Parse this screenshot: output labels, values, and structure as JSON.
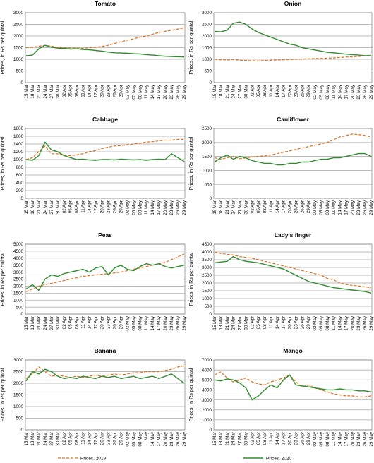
{
  "x_dates": [
    "15 Mar",
    "18 Mar",
    "21 Mar",
    "24 Mar",
    "27 Mar",
    "30 Mar",
    "02 Apr",
    "05 Apr",
    "08 Apr",
    "11 Apr",
    "14 Apr",
    "17 Apr",
    "20 Apr",
    "23 Apr",
    "26 Apr",
    "29 Apr",
    "02 May",
    "05 May",
    "08 May",
    "11 May",
    "14 May",
    "17 May",
    "20 May",
    "23 May",
    "26 May",
    "29 May"
  ],
  "legend": {
    "series_2019": "Prices, 2019",
    "series_2020": "Prices, 2020"
  },
  "colors": {
    "series_2019": "#E07020",
    "series_2020": "#2E8B2E",
    "grid": "#a6a6a6"
  },
  "chart_data": [
    {
      "type": "line",
      "title": "Tomato",
      "ylabel": "Prices, in Rs per quintal",
      "ylim": [
        0,
        3000
      ],
      "yticks": [
        0,
        500,
        1000,
        1500,
        2000,
        2500,
        3000
      ],
      "series": [
        {
          "name": "Prices, 2019",
          "values": [
            1500,
            1520,
            1560,
            1600,
            1560,
            1520,
            1500,
            1490,
            1480,
            1470,
            1500,
            1520,
            1550,
            1600,
            1680,
            1750,
            1820,
            1880,
            1950,
            2000,
            2080,
            2150,
            2200,
            2250,
            2300,
            2350
          ]
        },
        {
          "name": "Prices, 2020",
          "values": [
            1150,
            1180,
            1450,
            1600,
            1520,
            1480,
            1470,
            1440,
            1450,
            1420,
            1410,
            1380,
            1350,
            1310,
            1280,
            1270,
            1260,
            1240,
            1230,
            1200,
            1180,
            1150,
            1130,
            1120,
            1110,
            1100
          ]
        }
      ]
    },
    {
      "type": "line",
      "title": "Onion",
      "ylabel": "Prices, in Rs per quintal",
      "ylim": [
        0,
        3000
      ],
      "yticks": [
        0,
        500,
        1000,
        1500,
        2000,
        2500,
        3000
      ],
      "series": [
        {
          "name": "Prices, 2019",
          "values": [
            1000,
            980,
            970,
            990,
            960,
            950,
            940,
            930,
            950,
            960,
            970,
            980,
            990,
            1000,
            1010,
            1020,
            1030,
            1040,
            1050,
            1060,
            1080,
            1100,
            1110,
            1120,
            1150,
            1180
          ]
        },
        {
          "name": "Prices, 2020",
          "values": [
            2200,
            2180,
            2250,
            2550,
            2600,
            2500,
            2300,
            2150,
            2050,
            1950,
            1850,
            1750,
            1650,
            1600,
            1500,
            1450,
            1400,
            1350,
            1300,
            1280,
            1250,
            1220,
            1200,
            1180,
            1150,
            1150
          ]
        }
      ]
    },
    {
      "type": "line",
      "title": "Cabbage",
      "ylabel": "Prices, in Rs per quintal",
      "ylim": [
        0,
        1800
      ],
      "yticks": [
        0,
        200,
        400,
        600,
        800,
        1000,
        1200,
        1400,
        1600,
        1800
      ],
      "series": [
        {
          "name": "Prices, 2019",
          "values": [
            1000,
            1050,
            1200,
            1350,
            1150,
            1150,
            1100,
            1100,
            1120,
            1150,
            1200,
            1230,
            1280,
            1320,
            1350,
            1360,
            1380,
            1400,
            1420,
            1450,
            1460,
            1480,
            1500,
            1500,
            1520,
            1520
          ]
        },
        {
          "name": "Prices, 2020",
          "values": [
            1000,
            980,
            1100,
            1450,
            1250,
            1200,
            1100,
            1050,
            1000,
            1010,
            990,
            980,
            1000,
            1000,
            990,
            1010,
            1000,
            990,
            1000,
            980,
            1000,
            1010,
            1000,
            1150,
            1050,
            950
          ]
        }
      ]
    },
    {
      "type": "line",
      "title": "Cauliflower",
      "ylabel": "Prices, in Rs per quintal",
      "ylim": [
        0,
        2500
      ],
      "yticks": [
        0,
        500,
        1000,
        1500,
        2000,
        2500
      ],
      "series": [
        {
          "name": "Prices, 2019",
          "values": [
            1450,
            1400,
            1450,
            1500,
            1420,
            1450,
            1480,
            1500,
            1520,
            1550,
            1600,
            1650,
            1700,
            1750,
            1800,
            1850,
            1900,
            1950,
            2000,
            2100,
            2200,
            2250,
            2300,
            2280,
            2250,
            2200
          ]
        },
        {
          "name": "Prices, 2020",
          "values": [
            1300,
            1450,
            1550,
            1400,
            1500,
            1450,
            1350,
            1300,
            1250,
            1250,
            1200,
            1200,
            1250,
            1250,
            1300,
            1300,
            1350,
            1400,
            1400,
            1450,
            1450,
            1500,
            1550,
            1600,
            1600,
            1500
          ]
        }
      ]
    },
    {
      "type": "line",
      "title": "Peas",
      "ylabel": "Prices, in Rs per quintal",
      "ylim": [
        0,
        5000
      ],
      "yticks": [
        0,
        500,
        1000,
        1500,
        2000,
        2500,
        3000,
        3500,
        4000,
        4500,
        5000
      ],
      "series": [
        {
          "name": "Prices, 2019",
          "values": [
            1600,
            1800,
            2000,
            2100,
            2200,
            2300,
            2400,
            2500,
            2600,
            2700,
            2750,
            2800,
            2850,
            2900,
            2950,
            3000,
            3100,
            3200,
            3300,
            3400,
            3500,
            3600,
            3700,
            3900,
            4100,
            4300
          ]
        },
        {
          "name": "Prices, 2020",
          "values": [
            1800,
            2100,
            1700,
            2500,
            2800,
            2700,
            2900,
            3000,
            3100,
            3200,
            3000,
            3300,
            3400,
            2800,
            3300,
            3500,
            3200,
            3100,
            3400,
            3600,
            3500,
            3600,
            3400,
            3300,
            3400,
            3500
          ]
        }
      ]
    },
    {
      "type": "line",
      "title": "Lady's finger",
      "ylabel": "Prices, in Rs per quintal",
      "ylim": [
        0,
        4500
      ],
      "yticks": [
        0,
        500,
        1000,
        1500,
        2000,
        2500,
        3000,
        3500,
        4000,
        4500
      ],
      "series": [
        {
          "name": "Prices, 2019",
          "values": [
            4000,
            3900,
            3850,
            3800,
            3700,
            3650,
            3600,
            3500,
            3400,
            3300,
            3200,
            3100,
            3000,
            2900,
            2800,
            2700,
            2600,
            2500,
            2300,
            2200,
            2000,
            1900,
            1850,
            1800,
            1750,
            1700
          ]
        },
        {
          "name": "Prices, 2020",
          "values": [
            3300,
            3350,
            3400,
            3700,
            3500,
            3400,
            3350,
            3300,
            3200,
            3100,
            3000,
            2900,
            2700,
            2500,
            2300,
            2100,
            2000,
            1900,
            1800,
            1700,
            1650,
            1600,
            1550,
            1500,
            1450,
            1350
          ]
        }
      ]
    },
    {
      "type": "line",
      "title": "Banana",
      "ylabel": "Prices, in Rs per quintal",
      "ylim": [
        0,
        3000
      ],
      "yticks": [
        0,
        500,
        1000,
        1500,
        2000,
        2500,
        3000
      ],
      "series": [
        {
          "name": "Prices, 2019",
          "values": [
            2200,
            2400,
            2700,
            2500,
            2300,
            2350,
            2300,
            2250,
            2300,
            2250,
            2300,
            2350,
            2300,
            2350,
            2400,
            2350,
            2400,
            2450,
            2450,
            2500,
            2500,
            2500,
            2550,
            2600,
            2700,
            2750
          ]
        },
        {
          "name": "Prices, 2020",
          "values": [
            2100,
            2500,
            2400,
            2600,
            2500,
            2300,
            2200,
            2250,
            2200,
            2300,
            2250,
            2200,
            2300,
            2250,
            2300,
            2200,
            2250,
            2300,
            2200,
            2250,
            2300,
            2200,
            2300,
            2400,
            2200,
            2000
          ]
        }
      ]
    },
    {
      "type": "line",
      "title": "Mango",
      "ylabel": "Prices, in Rs per quintal",
      "ylim": [
        0,
        7000
      ],
      "yticks": [
        0,
        1000,
        2000,
        3000,
        4000,
        5000,
        6000,
        7000
      ],
      "series": [
        {
          "name": "Prices, 2019",
          "values": [
            5500,
            5800,
            5200,
            4800,
            5000,
            5200,
            4800,
            4600,
            4500,
            4800,
            5000,
            5200,
            5500,
            4800,
            4300,
            4500,
            4200,
            4000,
            3800,
            3600,
            3500,
            3400,
            3400,
            3300,
            3300,
            3400
          ]
        },
        {
          "name": "Prices, 2020",
          "values": [
            5000,
            4900,
            5100,
            5000,
            4700,
            4200,
            3000,
            3400,
            4000,
            4500,
            4200,
            5000,
            5500,
            4500,
            4400,
            4300,
            4200,
            4100,
            4000,
            4000,
            4100,
            4000,
            4000,
            3900,
            3900,
            3800
          ]
        }
      ]
    }
  ]
}
